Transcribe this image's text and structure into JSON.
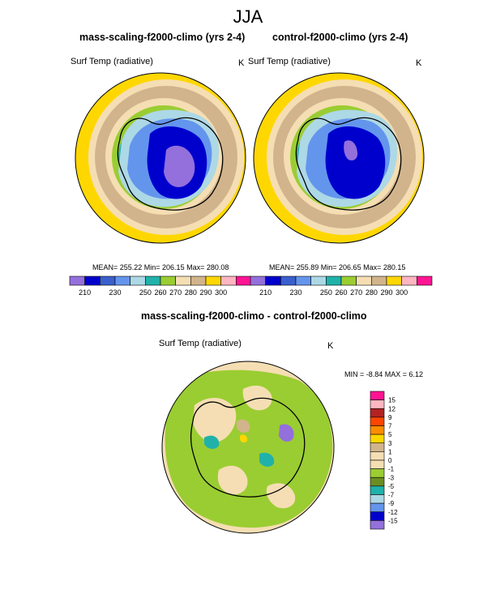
{
  "season_title": "JJA",
  "panels": [
    {
      "title": "mass-scaling-f2000-climo (yrs 2-4)",
      "variable": "Surf Temp (radiative)",
      "units": "K",
      "stats": "MEAN= 255.22  Min= 206.15  Max= 280.08"
    },
    {
      "title": "control-f2000-climo (yrs 2-4)",
      "variable": "Surf Temp (radiative)",
      "units": "K",
      "stats": "MEAN= 255.89  Min= 206.65  Max= 280.15"
    },
    {
      "title": "mass-scaling-f2000-climo - control-f2000-climo",
      "variable": "Surf Temp (radiative)",
      "units": "K",
      "stats": "MIN =  -8.84 MAX =   6.12"
    }
  ],
  "chart_data": [
    {
      "type": "heatmap",
      "title": "mass-scaling-f2000-climo (yrs 2-4)",
      "projection": "south polar stereographic",
      "variable": "Surf Temp (radiative)",
      "units": "K",
      "mean": 255.22,
      "min": 206.15,
      "max": 280.08,
      "colorbar_levels": [
        210,
        220,
        230,
        240,
        250,
        260,
        270,
        280,
        290,
        300
      ],
      "colorbar_labels": [
        "210",
        "230",
        "250",
        "260",
        "270",
        "280",
        "290",
        "300"
      ],
      "colors": [
        "#9370db",
        "#0000cd",
        "#3a5fcd",
        "#6495ed",
        "#add8e6",
        "#20b2aa",
        "#9acd32",
        "#f5deb3",
        "#d2b48c",
        "#ffd700",
        "#ffb6c1",
        "#ff1493"
      ]
    },
    {
      "type": "heatmap",
      "title": "control-f2000-climo (yrs 2-4)",
      "projection": "south polar stereographic",
      "variable": "Surf Temp (radiative)",
      "units": "K",
      "mean": 255.89,
      "min": 206.65,
      "max": 280.15,
      "colorbar_levels": [
        210,
        220,
        230,
        240,
        250,
        260,
        270,
        280,
        290,
        300
      ],
      "colorbar_labels": [
        "210",
        "230",
        "250",
        "260",
        "270",
        "280",
        "290",
        "300"
      ],
      "colors": [
        "#9370db",
        "#0000cd",
        "#3a5fcd",
        "#6495ed",
        "#add8e6",
        "#20b2aa",
        "#9acd32",
        "#f5deb3",
        "#d2b48c",
        "#ffd700",
        "#ffb6c1",
        "#ff1493"
      ]
    },
    {
      "type": "heatmap",
      "title": "mass-scaling-f2000-climo - control-f2000-climo",
      "projection": "south polar stereographic",
      "variable": "Surf Temp (radiative)",
      "units": "K",
      "min": -8.84,
      "max": 6.12,
      "colorbar_labels": [
        "15",
        "12",
        "9",
        "7",
        "5",
        "3",
        "1",
        "0",
        "-1",
        "-3",
        "-5",
        "-7",
        "-9",
        "-12",
        "-15"
      ],
      "colors": [
        "#ff1493",
        "#ffb6c1",
        "#b22222",
        "#ff4500",
        "#ff8c00",
        "#ffd700",
        "#d2b48c",
        "#f5deb3",
        "#f5deb3",
        "#9acd32",
        "#6b8e23",
        "#20b2aa",
        "#add8e6",
        "#6495ed",
        "#0000cd",
        "#9370db"
      ]
    }
  ]
}
